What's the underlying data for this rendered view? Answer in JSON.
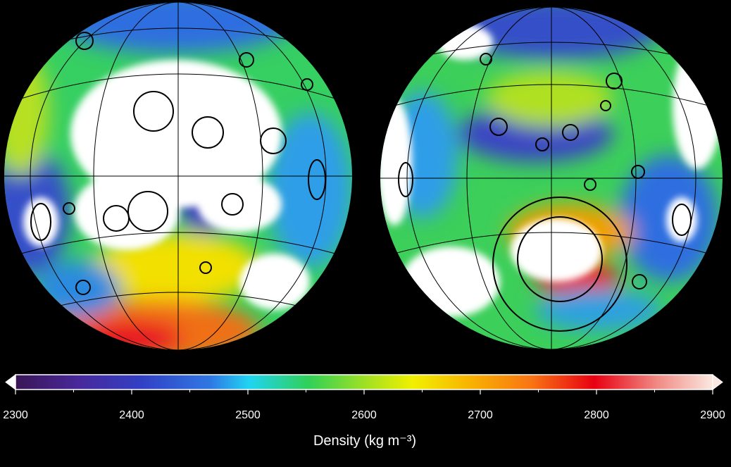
{
  "colorbar": {
    "label": "Density (kg m⁻³)",
    "lim": [
      2300,
      2900
    ],
    "ticks": [
      2300,
      2400,
      2500,
      2600,
      2700,
      2800,
      2900
    ],
    "minor_ticks": [
      2350,
      2450,
      2550,
      2650,
      2750,
      2850
    ]
  }
}
